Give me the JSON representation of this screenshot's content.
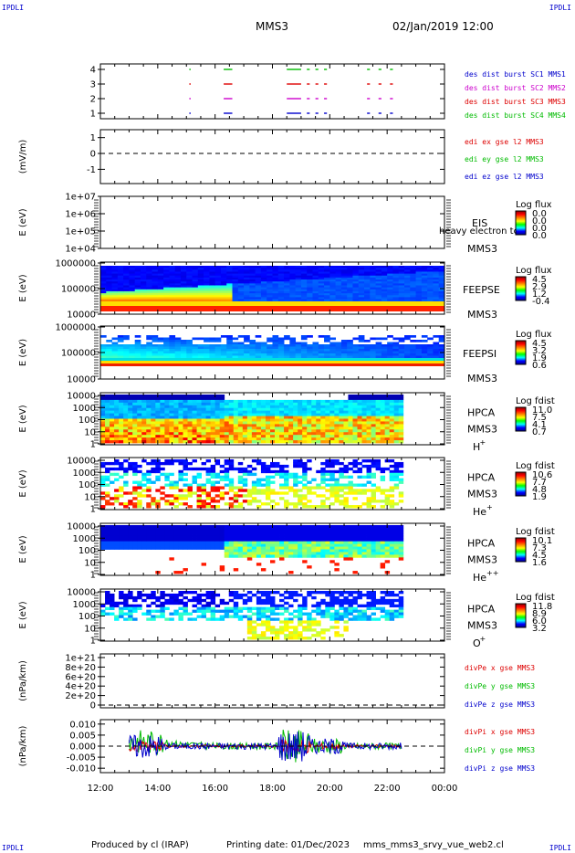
{
  "corner_label": "IPDLI",
  "header": {
    "spacecraft": "MMS3",
    "datetime": "02/Jan/2019 12:00"
  },
  "footer": {
    "produced_by": "Produced by cl (IRAP)",
    "printing_date": "Printing date: 01/Dec/2023",
    "filename": "mms_mms3_srvy_vue_web2.cl"
  },
  "colors": {
    "sc1": "#0000cc",
    "sc2": "#cc00cc",
    "sc3": "#dd0000",
    "sc4": "#00bb00"
  },
  "chart_data": {
    "type": "multi-panel time series",
    "x_tick_labels": [
      "12:00",
      "14:00",
      "16:00",
      "18:00",
      "20:00",
      "22:00",
      "00:00"
    ],
    "x_range_hours": [
      12,
      24
    ],
    "panels": [
      {
        "id": "burst",
        "type": "timeline",
        "y_tick_labels": [
          "1",
          "2",
          "3",
          "4"
        ],
        "ylabel": "",
        "series": [
          {
            "name": "des dist burst SC1 MMS1",
            "color": "#0000cc",
            "level": 1
          },
          {
            "name": "des dist burst SC2 MMS2",
            "color": "#cc00cc",
            "level": 2
          },
          {
            "name": "des dist burst SC3 MMS3",
            "color": "#dd0000",
            "level": 3
          },
          {
            "name": "des dist burst SC4 MMS4",
            "color": "#00bb00",
            "level": 4
          }
        ],
        "intervals_hours": [
          [
            15.1,
            15.15
          ],
          [
            16.3,
            16.6
          ],
          [
            18.5,
            19.0
          ],
          [
            19.2,
            19.3
          ],
          [
            19.5,
            19.6
          ],
          [
            19.8,
            19.9
          ],
          [
            21.3,
            21.4
          ],
          [
            21.7,
            21.8
          ],
          [
            22.1,
            22.2
          ]
        ]
      },
      {
        "id": "edi",
        "type": "line",
        "ylabel": "(mV/m)",
        "y_tick_labels": [
          "1",
          "0",
          "-1"
        ],
        "y_range": [
          -1.9,
          1.5
        ],
        "series": [
          {
            "name": "edi ex gse l2 MMS3",
            "color": "#dd0000"
          },
          {
            "name": "edi ey gse l2 MMS3",
            "color": "#00bb00"
          },
          {
            "name": "edi ez gse l2 MMS3",
            "color": "#0000cc"
          }
        ],
        "reference_line": 0
      },
      {
        "id": "eis",
        "type": "heatmap",
        "ylabel": "E (eV)",
        "y_tick_labels": [
          "1e+07",
          "1e+06",
          "1e+05",
          "1e+04"
        ],
        "labels": [
          "EIS",
          "MMS3"
        ],
        "overlay_text": "heavy electron to",
        "colorbar": {
          "title": "Log flux",
          "ticks": [
            "0.0",
            "0.0",
            "0.0",
            "0.0"
          ]
        }
      },
      {
        "id": "feepse",
        "type": "heatmap",
        "ylabel": "E (eV)",
        "y_tick_labels": [
          "1000000",
          "100000",
          "10000"
        ],
        "labels": [
          "FEEPSE",
          "MMS3"
        ],
        "colorbar": {
          "title": "Log flux",
          "ticks": [
            "4.5",
            "2.9",
            "1.2",
            "-0.4"
          ]
        }
      },
      {
        "id": "feepsi",
        "type": "heatmap",
        "ylabel": "E (eV)",
        "y_tick_labels": [
          "1000000",
          "100000",
          "10000"
        ],
        "labels": [
          "FEEPSI",
          "MMS3"
        ],
        "colorbar": {
          "title": "Log flux",
          "ticks": [
            "4.5",
            "3.2",
            "1.9",
            "0.6"
          ]
        }
      },
      {
        "id": "hpca-h",
        "type": "heatmap",
        "ylabel": "E (eV)",
        "y_tick_labels": [
          "10000",
          "1000",
          "100",
          "10",
          "1"
        ],
        "labels": [
          "HPCA",
          "MMS3"
        ],
        "species": "H",
        "species_charge": "+",
        "colorbar": {
          "title": "Log fdist",
          "ticks": [
            "11.0",
            "7.5",
            "4.1",
            "0.7"
          ]
        }
      },
      {
        "id": "hpca-he",
        "type": "heatmap",
        "ylabel": "E (eV)",
        "y_tick_labels": [
          "10000",
          "1000",
          "100",
          "10",
          "1"
        ],
        "labels": [
          "HPCA",
          "MMS3"
        ],
        "species": "He",
        "species_charge": "+",
        "colorbar": {
          "title": "Log fdist",
          "ticks": [
            "10.6",
            "7.7",
            "4.8",
            "1.9"
          ]
        }
      },
      {
        "id": "hpca-he2",
        "type": "heatmap",
        "ylabel": "E (eV)",
        "y_tick_labels": [
          "10000",
          "1000",
          "100",
          "10",
          "1"
        ],
        "labels": [
          "HPCA",
          "MMS3"
        ],
        "species": "He",
        "species_charge": "++",
        "colorbar": {
          "title": "Log fdist",
          "ticks": [
            "10.1",
            "7.3",
            "4.5",
            "1.6"
          ]
        }
      },
      {
        "id": "hpca-o",
        "type": "heatmap",
        "ylabel": "E (eV)",
        "y_tick_labels": [
          "10000",
          "1000",
          "100",
          "10",
          "1"
        ],
        "labels": [
          "HPCA",
          "MMS3"
        ],
        "species": "O",
        "species_charge": "+",
        "colorbar": {
          "title": "Log fdist",
          "ticks": [
            "11.8",
            "8.9",
            "6.0",
            "3.2"
          ]
        }
      },
      {
        "id": "divpe",
        "type": "line",
        "ylabel": "(nPa/km)",
        "y_tick_labels": [
          "1e+21",
          "8e+20",
          "6e+20",
          "4e+20",
          "2e+20",
          "0"
        ],
        "series": [
          {
            "name": "divPe x gse MMS3",
            "color": "#dd0000"
          },
          {
            "name": "divPe y gse MMS3",
            "color": "#00bb00"
          },
          {
            "name": "divPe z gse MMS3",
            "color": "#0000cc"
          }
        ],
        "reference_line": 0
      },
      {
        "id": "divpi",
        "type": "line",
        "ylabel": "(nPa/km)",
        "y_tick_labels": [
          "0.010",
          "0.005",
          "0.000",
          "-0.005",
          "-0.010"
        ],
        "y_range": [
          -0.012,
          0.012
        ],
        "series": [
          {
            "name": "divPi x gse MMS3",
            "color": "#dd0000"
          },
          {
            "name": "divPi y gse MMS3",
            "color": "#00bb00"
          },
          {
            "name": "divPi z gse MMS3",
            "color": "#0000cc"
          }
        ],
        "data_start_hour": 13.0,
        "data_end_hour": 22.5,
        "reference_line": 0
      }
    ]
  }
}
